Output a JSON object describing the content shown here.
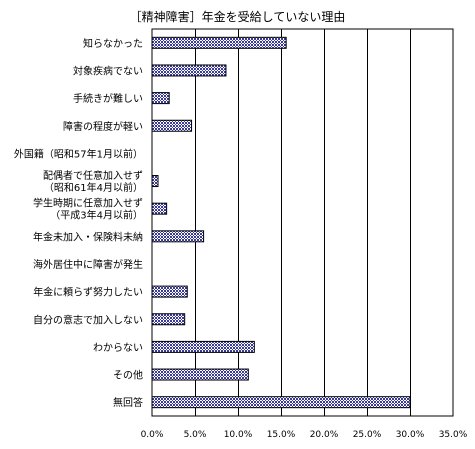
{
  "chart_data": {
    "type": "bar",
    "orientation": "horizontal",
    "title": "［精神障害］年金を受給していない理由",
    "categories": [
      [
        "知らなかった"
      ],
      [
        "対象疾病でない"
      ],
      [
        "手続きが難しい"
      ],
      [
        "障害の程度が軽い"
      ],
      [
        "外国籍（昭和57年1月以前）"
      ],
      [
        "配偶者で任意加入せず",
        "（昭和61年4月以前）"
      ],
      [
        "学生時期に任意加入せず",
        "（平成3年4月以前）"
      ],
      [
        "年金未加入・保険料未納"
      ],
      [
        "海外居住中に障害が発生"
      ],
      [
        "年金に頼らず努力したい"
      ],
      [
        "自分の意志で加入しない"
      ],
      [
        "わからない"
      ],
      [
        "その他"
      ],
      [
        "無回答"
      ]
    ],
    "values": [
      15.6,
      8.6,
      2.0,
      4.6,
      0.0,
      0.7,
      1.7,
      6.0,
      0.0,
      4.1,
      3.8,
      11.9,
      11.2,
      30.0
    ],
    "xlim": [
      0,
      35
    ],
    "xticks": [
      "0.0%",
      "5.0%",
      "10.0%",
      "15.0%",
      "20.0%",
      "25.0%",
      "30.0%",
      "35.0%"
    ],
    "grid": true,
    "legend": "none",
    "bar_color": "#7a7ac8"
  }
}
